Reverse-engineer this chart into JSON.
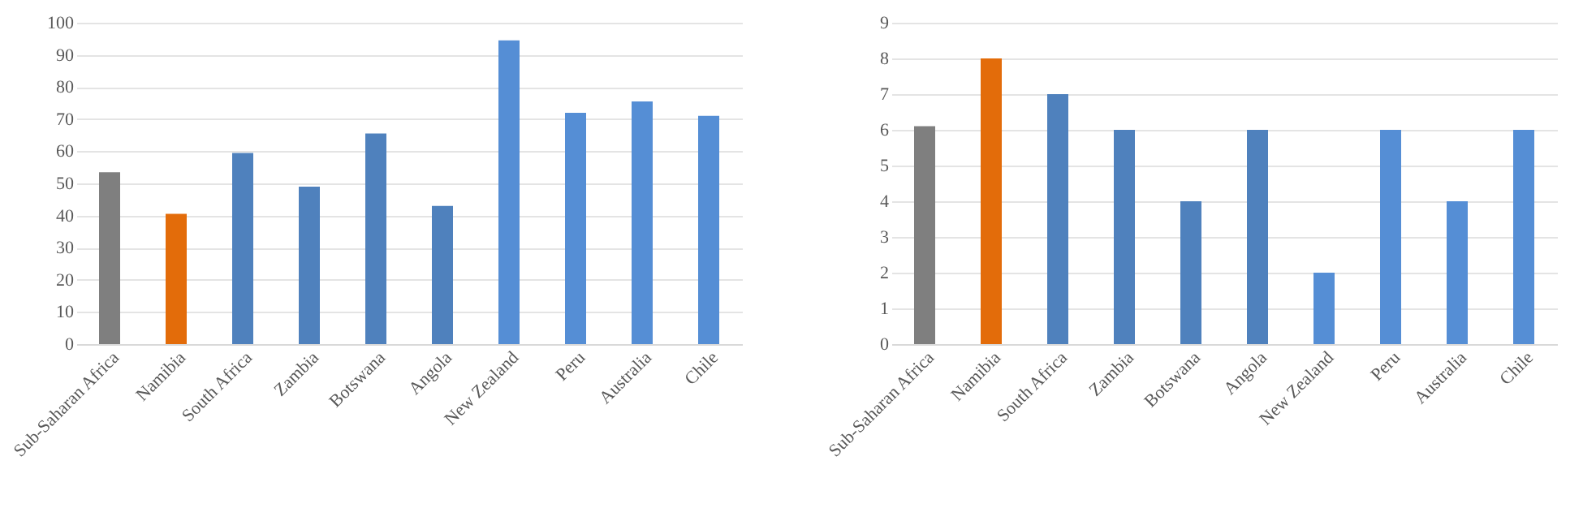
{
  "chart_data": [
    {
      "type": "bar",
      "categories": [
        "Sub-Saharan Africa",
        "Namibia",
        "South Africa",
        "Zambia",
        "Botswana",
        "Angola",
        "New Zealand",
        "Peru",
        "Australia",
        "Chile"
      ],
      "values": [
        53.5,
        40.5,
        59.5,
        49,
        65.5,
        43,
        94.5,
        72,
        75.5,
        71
      ],
      "colors": [
        "#7f7f7f",
        "#e36c0a",
        "#4f81bd",
        "#4f81bd",
        "#4f81bd",
        "#4f81bd",
        "#558ed5",
        "#558ed5",
        "#558ed5",
        "#558ed5"
      ],
      "ylim": [
        0,
        100
      ],
      "yticks": [
        0,
        10,
        20,
        30,
        40,
        50,
        60,
        70,
        80,
        90,
        100
      ],
      "grid": "y"
    },
    {
      "type": "bar",
      "categories": [
        "Sub-Saharan Africa",
        "Namibia",
        "South Africa",
        "Zambia",
        "Botswana",
        "Angola",
        "New Zealand",
        "Peru",
        "Australia",
        "Chile"
      ],
      "values": [
        6.1,
        8,
        7,
        6,
        4,
        6,
        2,
        6,
        4,
        6
      ],
      "colors": [
        "#7f7f7f",
        "#e36c0a",
        "#4f81bd",
        "#4f81bd",
        "#4f81bd",
        "#4f81bd",
        "#558ed5",
        "#558ed5",
        "#558ed5",
        "#558ed5"
      ],
      "ylim": [
        0,
        9
      ],
      "yticks": [
        0,
        1,
        2,
        3,
        4,
        5,
        6,
        7,
        8,
        9
      ],
      "grid": "y"
    }
  ]
}
